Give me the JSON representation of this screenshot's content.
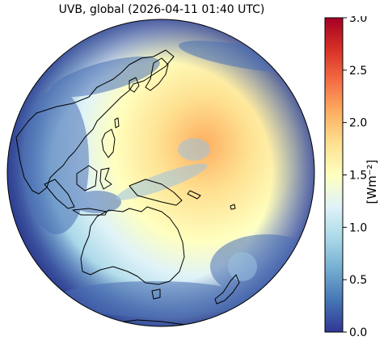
{
  "title": "UVB, global (2026-04-11 01:40 UTC)",
  "colorbar": {
    "label": "[Wm⁻²]",
    "min": 0.0,
    "max": 3.0,
    "ticks": [
      "0.0",
      "0.5",
      "1.0",
      "1.5",
      "2.0",
      "2.5",
      "3.0"
    ],
    "colormap": [
      "#313695",
      "#4575b4",
      "#74add1",
      "#abd9e9",
      "#e0f3f8",
      "#ffffbf",
      "#fee090",
      "#fdae61",
      "#f46d43",
      "#d73027",
      "#a50026"
    ]
  },
  "map": {
    "projection": "orthographic",
    "region": "Asia-Pacific / Oceania",
    "data_background": "#0d0d0d"
  }
}
